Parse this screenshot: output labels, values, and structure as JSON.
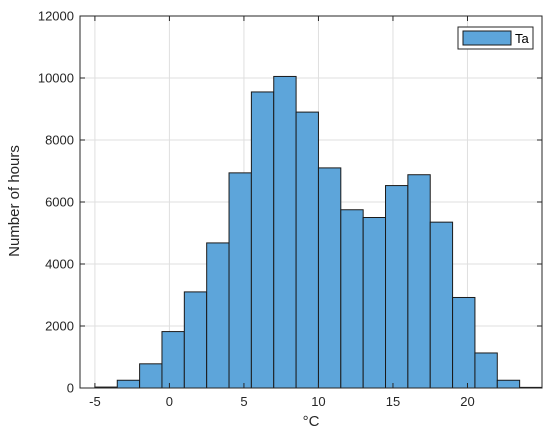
{
  "chart_data": {
    "type": "bar",
    "title": "",
    "xlabel": "°C",
    "ylabel": "Number of hours",
    "xlim": [
      -6,
      25
    ],
    "ylim": [
      0,
      12000
    ],
    "bin_width": 1.5,
    "xticks": [
      -5,
      0,
      5,
      10,
      15,
      20
    ],
    "yticks": [
      0,
      2000,
      4000,
      6000,
      8000,
      10000,
      12000
    ],
    "grid": true,
    "legend_position": "top-right",
    "bar_color": "#5DA5DA",
    "edge_color": "#1a1a1a",
    "series": [
      {
        "name": "Ta",
        "bin_edges": [
          -5,
          -3.5,
          -2,
          -0.5,
          1,
          2.5,
          4,
          5.5,
          7,
          8.5,
          10,
          11.5,
          13,
          14.5,
          16,
          17.5,
          19,
          20.5,
          22,
          23.5
        ],
        "values": [
          30,
          250,
          780,
          1820,
          3100,
          4680,
          6940,
          9550,
          10050,
          8900,
          7100,
          5750,
          5500,
          6530,
          6880,
          5350,
          2920,
          1130,
          250,
          20
        ]
      }
    ]
  }
}
